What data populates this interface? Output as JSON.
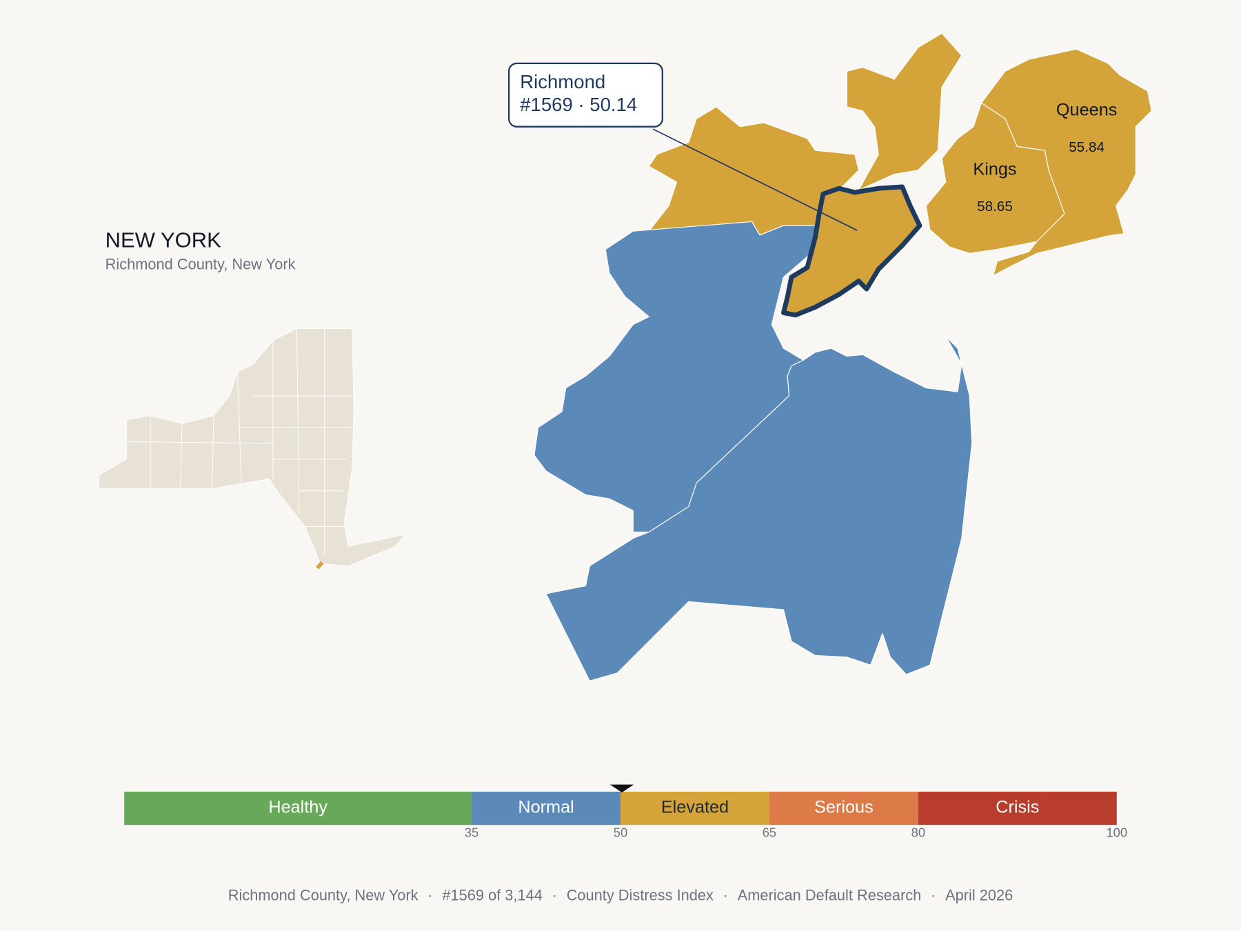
{
  "header": {
    "title": "NEW YORK",
    "subtitle": "Richmond County, New York"
  },
  "callout": {
    "name": "Richmond",
    "detail": "#1569 · 50.14"
  },
  "labels": [
    {
      "name": "Queens",
      "value": 55.84
    },
    {
      "name": "Kings",
      "value": 58.65
    }
  ],
  "scale": {
    "lim": [
      0,
      100
    ],
    "marker": 50.14,
    "bands": [
      {
        "label": "Healthy",
        "to": 35,
        "color": "#68a85a",
        "label_color": "#ffffff"
      },
      {
        "label": "Normal",
        "to": 50,
        "color": "#5b89b8",
        "label_color": "#ffffff"
      },
      {
        "label": "Elevated",
        "to": 65,
        "color": "#d4a43a",
        "label_color": "#1f2937"
      },
      {
        "label": "Serious",
        "to": 80,
        "color": "#dc7a48",
        "label_color": "#ffffff"
      },
      {
        "label": "Crisis",
        "to": 100,
        "color": "#b83d2c",
        "label_color": "#ffffff"
      }
    ]
  },
  "footer": {
    "separator": "·",
    "items": [
      "Richmond County, New York",
      "#1569 of 3,144",
      "County Distress Index",
      "American Default Research",
      "April 2026"
    ]
  }
}
